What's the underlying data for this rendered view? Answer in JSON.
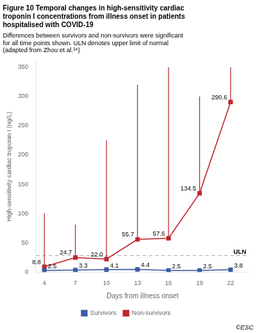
{
  "chart_data": {
    "type": "line",
    "title": [
      "Figure 10 Temporal changes in high-sensitivity cardiac",
      "troponin I concentrations from illness onset in patients",
      "hospitalised with COVID-19"
    ],
    "subtitle": [
      "Differences between survivors and non-survivors were significant",
      "for all time points shown. ULN denotes upper limit of normal",
      "(adapted from Zhou et al.³⁴)"
    ],
    "xlabel": "Days from illness onset",
    "ylabel": "High-sensitivity cardiac troponin I (ng/L)",
    "x": [
      4,
      7,
      10,
      13,
      16,
      19,
      22
    ],
    "series": [
      {
        "name": "Survivors",
        "color": "#3B5BA5",
        "marker": "square",
        "line_style": "solid",
        "values": [
          2.5,
          3.3,
          4.1,
          4.4,
          2.5,
          2.5,
          3.8
        ]
      },
      {
        "name": "Non-survivors",
        "color": "#C0272D",
        "marker": "square",
        "line_style": "solid",
        "values": [
          8.8,
          24.7,
          22.0,
          55.7,
          57.6,
          134.5,
          290.6
        ],
        "value_labels": [
          "8.8",
          "24.7",
          "22.0",
          "55.7",
          "57.6",
          "134.5",
          "290.6"
        ],
        "yerr_lower": [
          0,
          0,
          0,
          0,
          0,
          0,
          0
        ],
        "yerr_upper": [
          91.2,
          56.3,
          203.0,
          264.3,
          292.4,
          165.5,
          59.4
        ]
      }
    ],
    "xlim": [
      3.2,
      23.8
    ],
    "xticks": [
      4,
      7,
      10,
      13,
      16,
      19,
      22
    ],
    "ylim": [
      0,
      360
    ],
    "yticks": [
      0,
      50,
      100,
      150,
      200,
      250,
      300,
      350
    ],
    "grid": false,
    "legend": "bottom",
    "data_labels": true,
    "reference_lines": [
      {
        "y": 28,
        "label": "ULN",
        "color": "#AAAAAA",
        "line_style": "dashed"
      }
    ],
    "copyright": "©ESC"
  }
}
